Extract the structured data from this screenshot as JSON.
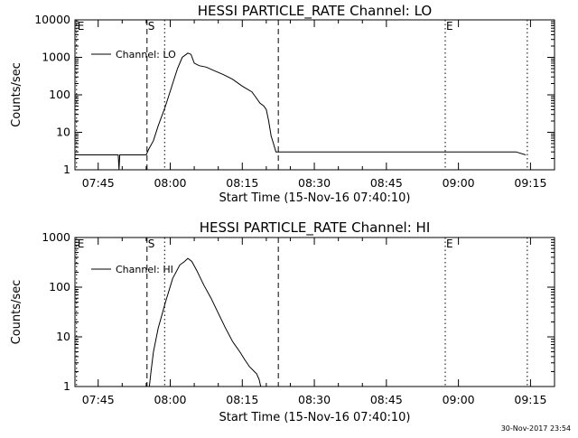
{
  "chart_data": [
    {
      "type": "line",
      "title": "HESSI PARTICLE_RATE Channel: LO",
      "xlabel": "Start Time (15-Nov-16 07:40:10)",
      "ylabel": "Counts/sec",
      "yscale": "log",
      "ylim": [
        1,
        10000
      ],
      "xlim": [
        "07:40:10",
        "09:20:00"
      ],
      "xticks": [
        "07:45",
        "08:00",
        "08:15",
        "08:30",
        "08:45",
        "09:00",
        "09:15"
      ],
      "yticks": [
        "1",
        "10",
        "100",
        "1000",
        "10000"
      ],
      "legend": {
        "label": "Channel: LO",
        "placement": "top-left"
      },
      "markers": [
        {
          "label": "E",
          "time": "07:40:30",
          "style": "dotted"
        },
        {
          "label": "S",
          "time": "07:55:10",
          "style": "dashed"
        },
        {
          "label": "",
          "time": "07:58:50",
          "style": "dotted"
        },
        {
          "label": "",
          "time": "08:22:30",
          "style": "dashed"
        },
        {
          "label": "E",
          "time": "08:57:15",
          "style": "dotted"
        },
        {
          "label": "",
          "time": "09:14:20",
          "style": "dotted"
        }
      ],
      "series": [
        {
          "name": "Channel: LO",
          "x": [
            "07:40:10",
            "07:44:00",
            "07:48:00",
            "07:49:10",
            "07:49:20",
            "07:49:30",
            "07:52:00",
            "07:55:00",
            "07:55:30",
            "07:56:30",
            "07:57:30",
            "07:59:00",
            "08:00:30",
            "08:01:30",
            "08:02:30",
            "08:03:40",
            "08:04:20",
            "08:05:00",
            "08:06:00",
            "08:07:30",
            "08:09:00",
            "08:11:00",
            "08:13:00",
            "08:15:00",
            "08:17:00",
            "08:18:00",
            "08:18:40",
            "08:19:30",
            "08:20:00",
            "08:20:30",
            "08:21:00",
            "08:21:30",
            "08:22:00",
            "08:22:40",
            "08:23:30",
            "08:25:00",
            "08:30:00",
            "08:40:00",
            "08:50:00",
            "09:00:00",
            "09:05:00",
            "09:10:00",
            "09:12:00",
            "09:14:00"
          ],
          "y": [
            2.5,
            2.5,
            2.5,
            2.5,
            1.0,
            2.5,
            2.5,
            2.5,
            3.5,
            6,
            15,
            50,
            200,
            500,
            1000,
            1300,
            1200,
            700,
            600,
            550,
            450,
            350,
            260,
            170,
            120,
            80,
            60,
            50,
            40,
            20,
            8,
            5,
            3,
            3,
            3,
            3,
            3,
            3,
            3,
            3,
            3,
            3,
            3,
            2.5
          ]
        }
      ]
    },
    {
      "type": "line",
      "title": "HESSI PARTICLE_RATE Channel: HI",
      "xlabel": "Start Time (15-Nov-16 07:40:10)",
      "ylabel": "Counts/sec",
      "yscale": "log",
      "ylim": [
        1,
        1000
      ],
      "xlim": [
        "07:40:10",
        "09:20:00"
      ],
      "xticks": [
        "07:45",
        "08:00",
        "08:15",
        "08:30",
        "08:45",
        "09:00",
        "09:15"
      ],
      "yticks": [
        "1",
        "10",
        "100",
        "1000"
      ],
      "legend": {
        "label": "Channel: HI",
        "placement": "top-left"
      },
      "markers": [
        {
          "label": "E",
          "time": "07:40:30",
          "style": "dotted"
        },
        {
          "label": "S",
          "time": "07:55:10",
          "style": "dashed"
        },
        {
          "label": "",
          "time": "07:58:50",
          "style": "dotted"
        },
        {
          "label": "",
          "time": "08:22:30",
          "style": "dashed"
        },
        {
          "label": "E",
          "time": "08:57:15",
          "style": "dotted"
        },
        {
          "label": "",
          "time": "09:14:20",
          "style": "dotted"
        }
      ],
      "series": [
        {
          "name": "Channel: HI",
          "x": [
            "07:55:40",
            "07:56:00",
            "07:56:30",
            "07:57:30",
            "07:59:00",
            "08:00:30",
            "08:02:00",
            "08:03:00",
            "08:03:40",
            "08:04:30",
            "08:05:30",
            "08:07:00",
            "08:08:30",
            "08:10:00",
            "08:11:30",
            "08:13:00",
            "08:14:30",
            "08:15:30",
            "08:16:30",
            "08:17:30",
            "08:18:00",
            "08:18:30",
            "08:18:50"
          ],
          "y": [
            1.0,
            2,
            5,
            15,
            50,
            150,
            280,
            330,
            380,
            330,
            220,
            110,
            60,
            30,
            15,
            8,
            5,
            3.5,
            2.5,
            2,
            1.8,
            1.4,
            1.0
          ]
        }
      ]
    }
  ],
  "footer": {
    "timestamp": "30-Nov-2017 23:54"
  }
}
